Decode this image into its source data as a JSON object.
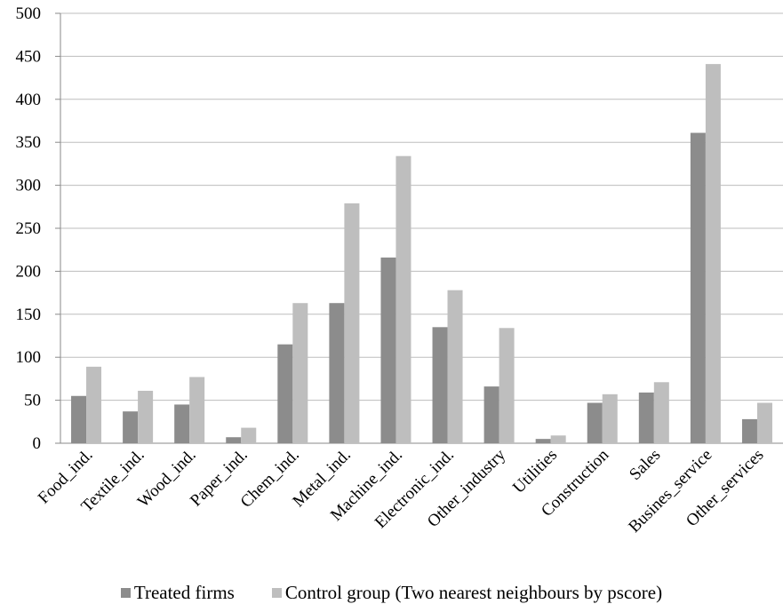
{
  "chart_data": {
    "type": "bar",
    "title": "",
    "xlabel": "",
    "ylabel": "",
    "ylim": [
      0,
      500
    ],
    "yticks": [
      0,
      50,
      100,
      150,
      200,
      250,
      300,
      350,
      400,
      450,
      500
    ],
    "grid": "horizontal",
    "legend_position": "bottom",
    "categories": [
      "Food_ind.",
      "Textile_ind.",
      "Wood_ind.",
      "Paper_ind.",
      "Chem_ind.",
      "Metal_ind.",
      "Machine_ind.",
      "Electronic_ind.",
      "Other_industry",
      "Utilities",
      "Construction",
      "Sales",
      "Busines_service",
      "Other_services"
    ],
    "series": [
      {
        "name": "Treated firms",
        "color": "#8c8c8c",
        "values": [
          55,
          37,
          45,
          7,
          115,
          163,
          216,
          135,
          66,
          5,
          47,
          59,
          361,
          28
        ]
      },
      {
        "name": "Control group (Two nearest neighbours by pscore)",
        "color": "#bebebe",
        "values": [
          89,
          61,
          77,
          18,
          163,
          279,
          334,
          178,
          134,
          9,
          57,
          71,
          441,
          47
        ]
      }
    ]
  }
}
